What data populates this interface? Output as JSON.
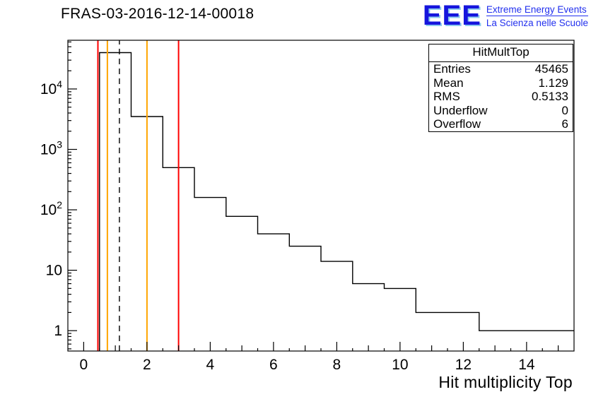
{
  "header": {
    "title": "FRAS-03-2016-12-14-00018",
    "logo": {
      "text": "EEE",
      "line1": "Extreme Energy Events",
      "line2": "La Scienza nelle Scuole",
      "color": "#2230ee"
    }
  },
  "stats": {
    "title": "HitMultTop",
    "rows": [
      {
        "label": "Entries",
        "value": "45465"
      },
      {
        "label": "Mean",
        "value": "1.129"
      },
      {
        "label": "RMS",
        "value": "0.5133"
      },
      {
        "label": "Underflow",
        "value": "0"
      },
      {
        "label": "Overflow",
        "value": "6"
      }
    ]
  },
  "chart_data": {
    "type": "bar",
    "subtype": "step-histogram",
    "title": "FRAS-03-2016-12-14-00018",
    "histogram_name": "HitMultTop",
    "xlabel": "Hit multiplicity Top",
    "ylabel": "",
    "y_scale": "log",
    "grid": false,
    "x_range": [
      -0.5,
      15.5
    ],
    "y_range": [
      0.46,
      64000
    ],
    "bin_start": 0.5,
    "bin_width": 1,
    "counts": [
      40000,
      3500,
      500,
      160,
      78,
      40,
      25,
      14,
      6,
      5,
      2,
      2,
      1,
      1,
      1
    ],
    "x_tick_labels": [
      0,
      2,
      4,
      6,
      8,
      10,
      12,
      14
    ],
    "y_tick_decades": [
      0,
      1,
      2,
      3,
      4
    ],
    "line_color": "#000000",
    "overlay_lines": [
      {
        "x": 0.45,
        "color": "#ff0000",
        "style": "solid",
        "name": "red-cut-low"
      },
      {
        "x": 0.75,
        "color": "#ffa500",
        "style": "solid",
        "name": "orange-cut-low"
      },
      {
        "x": 1.13,
        "color": "#000000",
        "style": "dashed",
        "name": "mean-dashed-line"
      },
      {
        "x": 2.0,
        "color": "#ffa500",
        "style": "solid",
        "name": "orange-cut-high"
      },
      {
        "x": 3.0,
        "color": "#ff0000",
        "style": "solid",
        "name": "red-cut-high"
      }
    ]
  }
}
